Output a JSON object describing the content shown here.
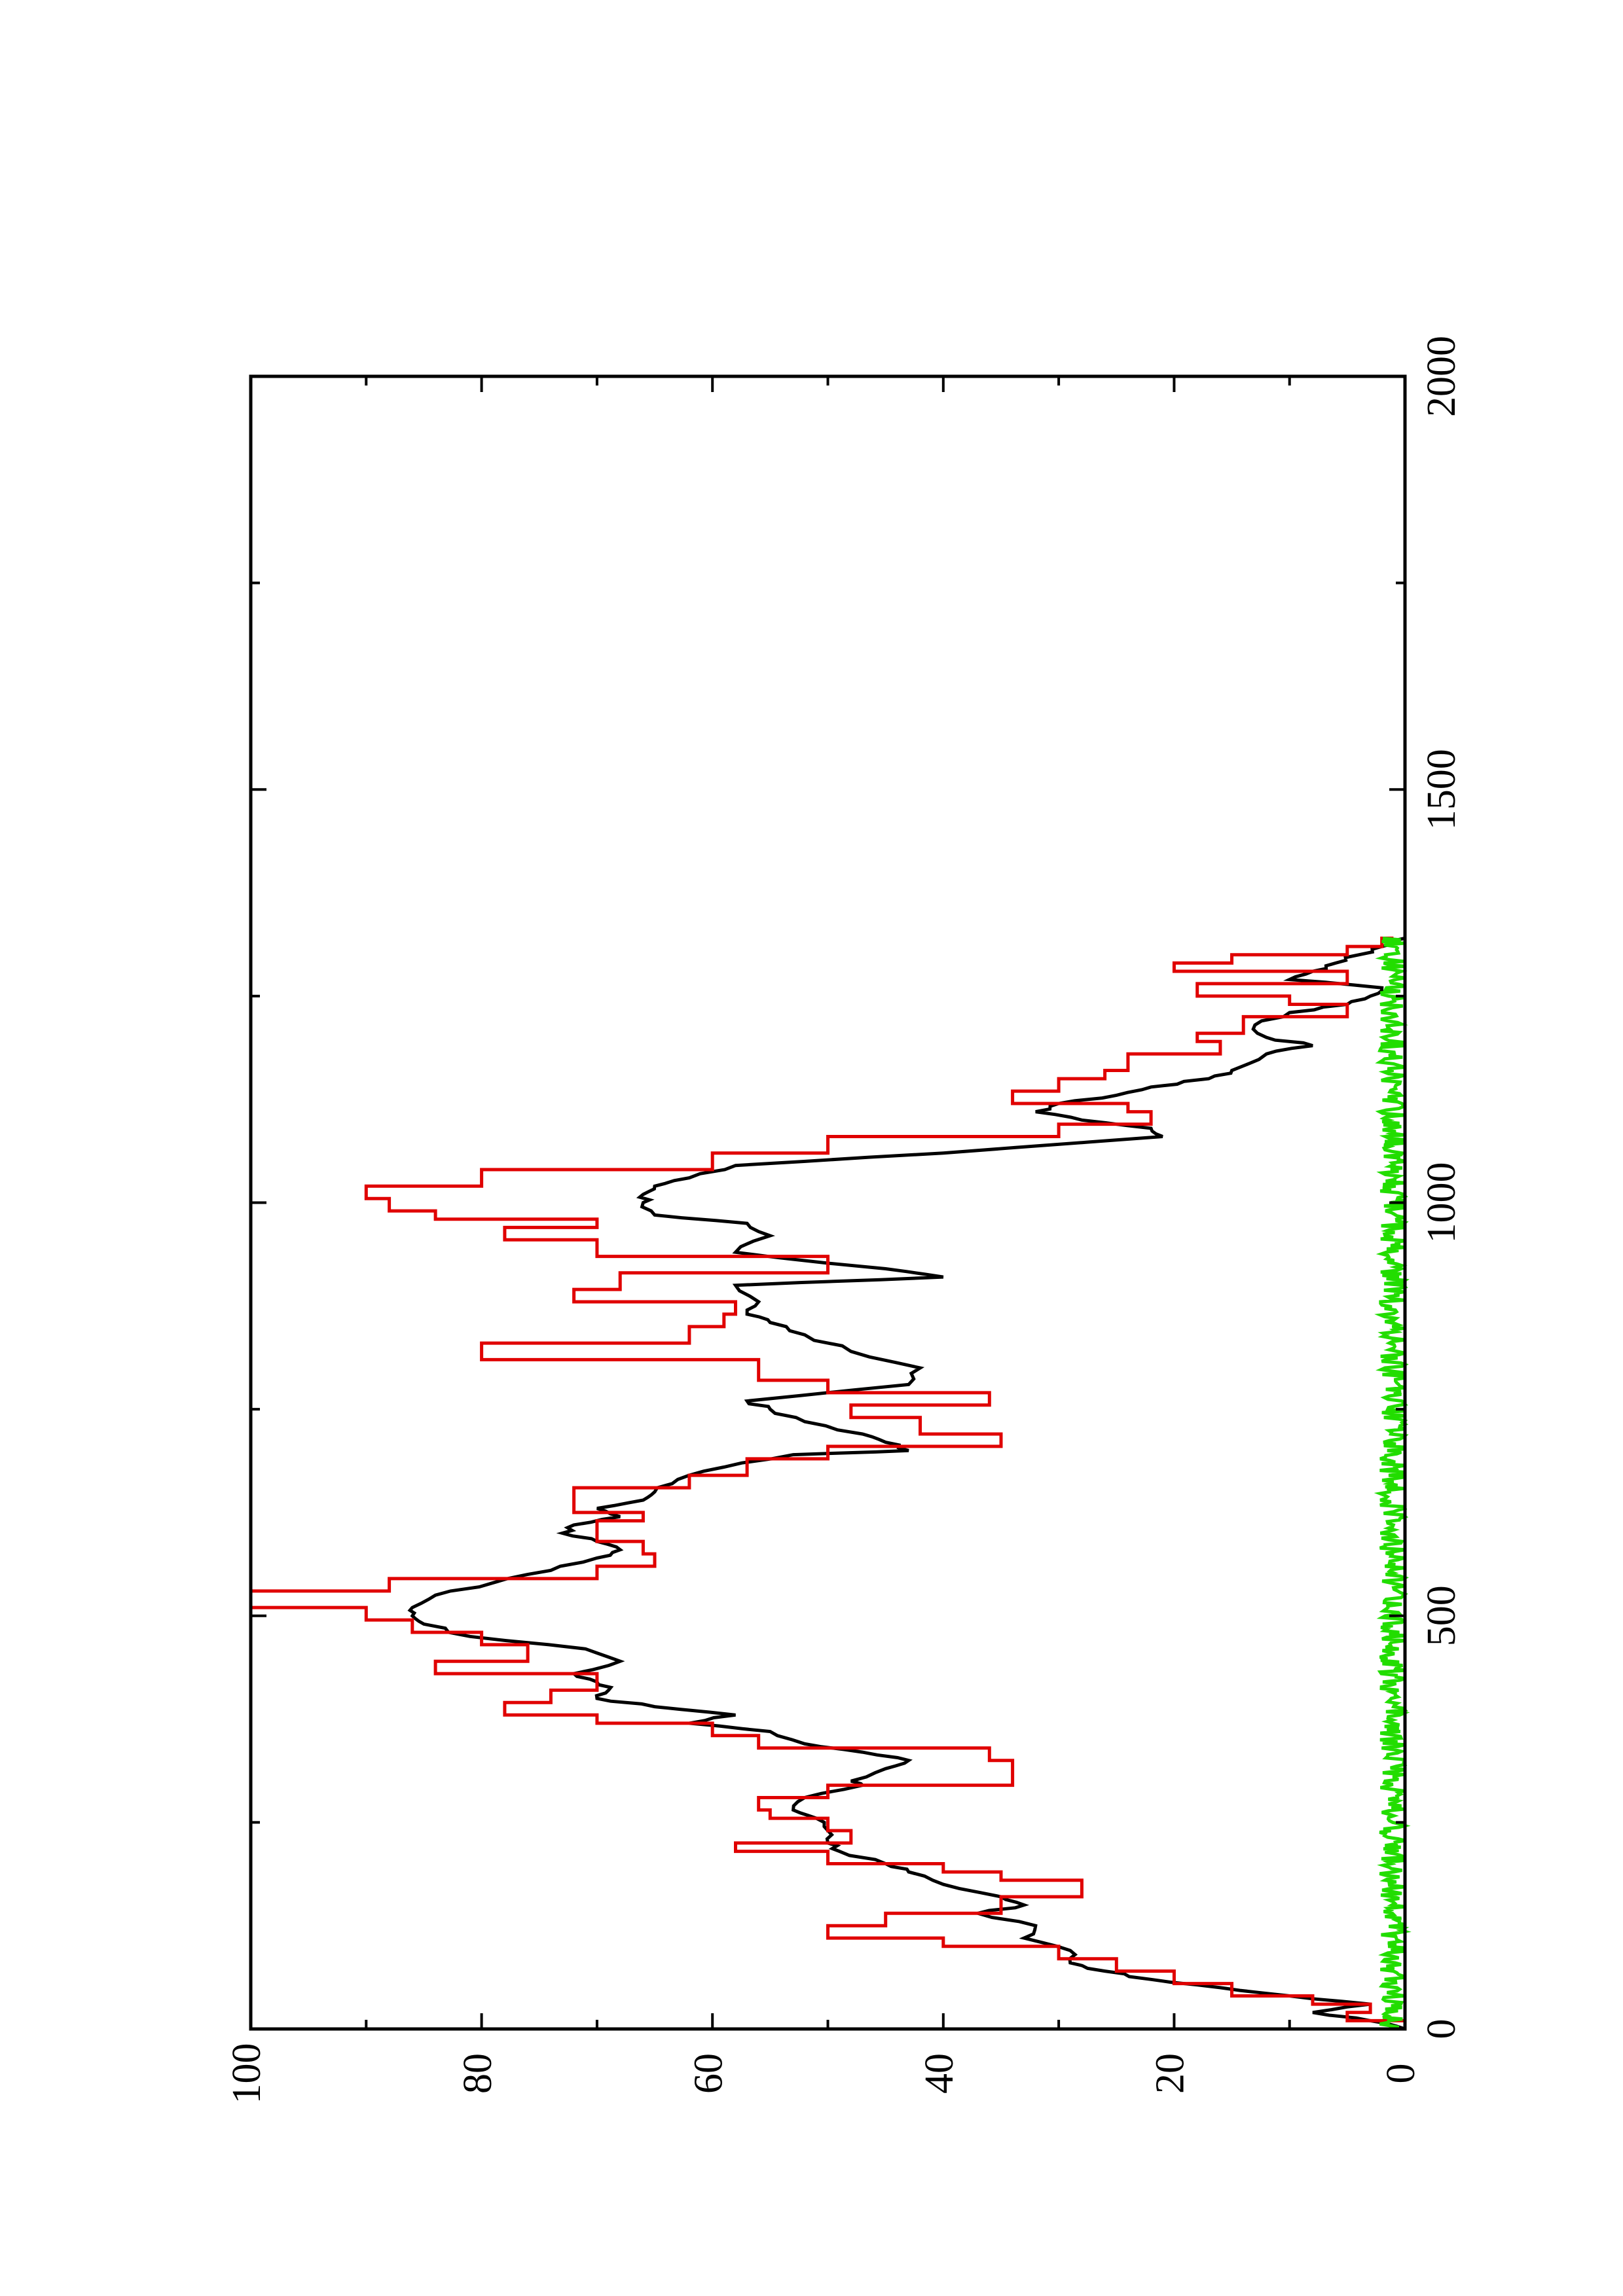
{
  "colors": {
    "black_series": "#000000",
    "red_series": "#e00000",
    "green_series": "#22dd00",
    "axis": "#000000",
    "background": "#ffffff"
  },
  "chart_data": {
    "type": "line",
    "orientation": "rotated-90-ccw",
    "title": "",
    "xlabel": "",
    "ylabel": "",
    "xlim": [
      0,
      2000
    ],
    "ylim": [
      0,
      100
    ],
    "x_ticks": [
      "0",
      "500",
      "1000",
      "1500",
      "2000"
    ],
    "y_ticks": [
      "0",
      "20",
      "40",
      "60",
      "80",
      "100"
    ],
    "grid": false,
    "legend": "none",
    "series": [
      {
        "color": "black",
        "style": "line",
        "points": [
          [
            0,
            0
          ],
          [
            10,
            3
          ],
          [
            20,
            8
          ],
          [
            30,
            3
          ],
          [
            40,
            10
          ],
          [
            50,
            16
          ],
          [
            60,
            22
          ],
          [
            70,
            26
          ],
          [
            80,
            29
          ],
          [
            95,
            29
          ],
          [
            110,
            33
          ],
          [
            125,
            32
          ],
          [
            140,
            37
          ],
          [
            150,
            33
          ],
          [
            160,
            35
          ],
          [
            175,
            40
          ],
          [
            190,
            43
          ],
          [
            200,
            45
          ],
          [
            215,
            49
          ],
          [
            225,
            50
          ],
          [
            240,
            50
          ],
          [
            255,
            51
          ],
          [
            265,
            53
          ],
          [
            280,
            52
          ],
          [
            295,
            47
          ],
          [
            300,
            48
          ],
          [
            315,
            45
          ],
          [
            325,
            43
          ],
          [
            335,
            47
          ],
          [
            345,
            52
          ],
          [
            360,
            55
          ],
          [
            370,
            62
          ],
          [
            380,
            58
          ],
          [
            390,
            65
          ],
          [
            400,
            70
          ],
          [
            410,
            69
          ],
          [
            420,
            70
          ],
          [
            430,
            72
          ],
          [
            445,
            68
          ],
          [
            460,
            71
          ],
          [
            475,
            81
          ],
          [
            490,
            85
          ],
          [
            500,
            86
          ],
          [
            510,
            86
          ],
          [
            525,
            84
          ],
          [
            540,
            79
          ],
          [
            555,
            74
          ],
          [
            570,
            70
          ],
          [
            580,
            68
          ],
          [
            590,
            70
          ],
          [
            600,
            73
          ],
          [
            610,
            72
          ],
          [
            620,
            68
          ],
          [
            630,
            70
          ],
          [
            640,
            66
          ],
          [
            650,
            65
          ],
          [
            665,
            63
          ],
          [
            680,
            59
          ],
          [
            695,
            53
          ],
          [
            700,
            43
          ],
          [
            710,
            45
          ],
          [
            720,
            47
          ],
          [
            735,
            52
          ],
          [
            750,
            55
          ],
          [
            760,
            57
          ],
          [
            780,
            43
          ],
          [
            800,
            42
          ],
          [
            820,
            48
          ],
          [
            840,
            52
          ],
          [
            855,
            55
          ],
          [
            865,
            57
          ],
          [
            880,
            56
          ],
          [
            900,
            58
          ],
          [
            910,
            40
          ],
          [
            920,
            45
          ],
          [
            940,
            58
          ],
          [
            960,
            55
          ],
          [
            975,
            57
          ],
          [
            985,
            65
          ],
          [
            1000,
            66
          ],
          [
            1010,
            66
          ],
          [
            1020,
            65
          ],
          [
            1030,
            62
          ],
          [
            1045,
            58
          ],
          [
            1060,
            40
          ],
          [
            1080,
            21
          ],
          [
            1090,
            22
          ],
          [
            1100,
            28
          ],
          [
            1110,
            32
          ],
          [
            1120,
            30
          ],
          [
            1130,
            25
          ],
          [
            1140,
            22
          ],
          [
            1150,
            17
          ],
          [
            1160,
            15
          ],
          [
            1180,
            12
          ],
          [
            1190,
            8
          ],
          [
            1200,
            12
          ],
          [
            1215,
            13
          ],
          [
            1230,
            10
          ],
          [
            1240,
            5
          ],
          [
            1250,
            3
          ],
          [
            1260,
            2
          ],
          [
            1270,
            10
          ],
          [
            1280,
            8
          ],
          [
            1290,
            6
          ],
          [
            1300,
            4
          ],
          [
            1310,
            2
          ],
          [
            1320,
            0
          ]
        ]
      },
      {
        "color": "red",
        "style": "stepped",
        "points": [
          [
            0,
            0
          ],
          [
            10,
            5
          ],
          [
            20,
            3
          ],
          [
            30,
            8
          ],
          [
            40,
            15
          ],
          [
            55,
            20
          ],
          [
            70,
            25
          ],
          [
            85,
            30
          ],
          [
            100,
            40
          ],
          [
            110,
            50
          ],
          [
            125,
            45
          ],
          [
            140,
            35
          ],
          [
            150,
            35
          ],
          [
            160,
            28
          ],
          [
            180,
            35
          ],
          [
            190,
            40
          ],
          [
            200,
            50
          ],
          [
            215,
            58
          ],
          [
            225,
            48
          ],
          [
            240,
            50
          ],
          [
            255,
            55
          ],
          [
            265,
            56
          ],
          [
            280,
            50
          ],
          [
            295,
            34
          ],
          [
            310,
            34
          ],
          [
            325,
            36
          ],
          [
            340,
            56
          ],
          [
            355,
            60
          ],
          [
            370,
            70
          ],
          [
            380,
            78
          ],
          [
            395,
            74
          ],
          [
            410,
            70
          ],
          [
            430,
            84
          ],
          [
            445,
            76
          ],
          [
            465,
            80
          ],
          [
            480,
            86
          ],
          [
            495,
            90
          ],
          [
            510,
            100
          ],
          [
            530,
            88
          ],
          [
            545,
            70
          ],
          [
            560,
            65
          ],
          [
            575,
            66
          ],
          [
            590,
            70
          ],
          [
            600,
            70
          ],
          [
            615,
            66
          ],
          [
            625,
            72
          ],
          [
            640,
            72
          ],
          [
            655,
            62
          ],
          [
            670,
            57
          ],
          [
            690,
            50
          ],
          [
            705,
            35
          ],
          [
            720,
            42
          ],
          [
            740,
            48
          ],
          [
            755,
            36
          ],
          [
            770,
            50
          ],
          [
            785,
            56
          ],
          [
            810,
            80
          ],
          [
            830,
            62
          ],
          [
            850,
            59
          ],
          [
            865,
            58
          ],
          [
            880,
            72
          ],
          [
            895,
            68
          ],
          [
            915,
            50
          ],
          [
            935,
            70
          ],
          [
            955,
            78
          ],
          [
            970,
            70
          ],
          [
            980,
            84
          ],
          [
            990,
            88
          ],
          [
            1005,
            90
          ],
          [
            1020,
            80
          ],
          [
            1040,
            60
          ],
          [
            1060,
            50
          ],
          [
            1080,
            30
          ],
          [
            1095,
            22
          ],
          [
            1110,
            24
          ],
          [
            1120,
            34
          ],
          [
            1135,
            30
          ],
          [
            1150,
            26
          ],
          [
            1160,
            24
          ],
          [
            1180,
            16
          ],
          [
            1195,
            18
          ],
          [
            1205,
            14
          ],
          [
            1225,
            5
          ],
          [
            1240,
            10
          ],
          [
            1250,
            18
          ],
          [
            1265,
            5
          ],
          [
            1280,
            20
          ],
          [
            1290,
            15
          ],
          [
            1300,
            5
          ],
          [
            1310,
            2
          ],
          [
            1320,
            1
          ]
        ]
      },
      {
        "color": "green",
        "style": "noisy-line",
        "x_range": [
          0,
          1320
        ],
        "mean_y": 1,
        "max_y": 3.5
      }
    ]
  }
}
